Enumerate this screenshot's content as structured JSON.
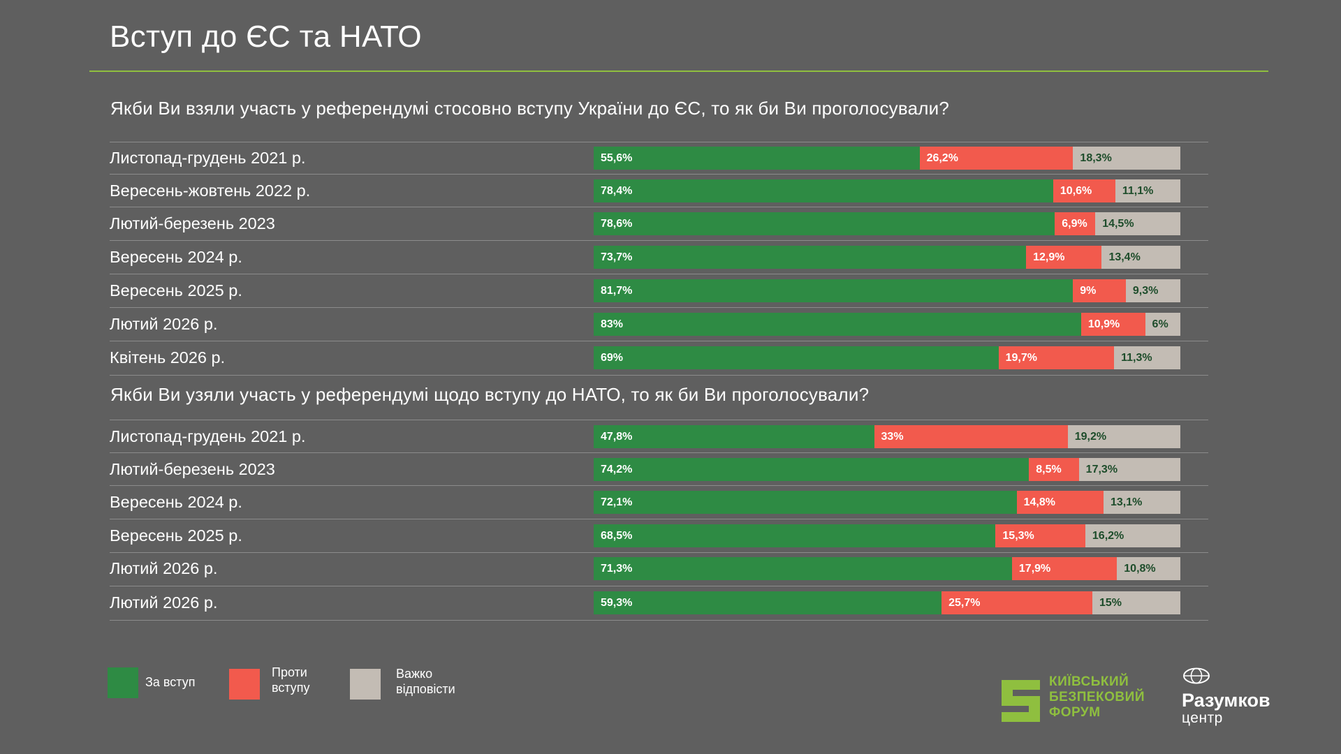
{
  "page": {
    "title": "Вступ до ЄС та НАТО"
  },
  "colors": {
    "for": "#2e8b44",
    "against": "#f25a4d",
    "hard": "#c3bcb4",
    "accent": "#8fbf3f"
  },
  "chart_data": [
    {
      "type": "bar",
      "orientation": "horizontal",
      "stacked": true,
      "title": "Якби Ви взяли участь у референдумі стосовно вступу України до ЄС, то як би Ви проголосували?",
      "categories": [
        "Листопад-грудень 2021 р.",
        "Вересень-жовтень 2022 р.",
        "Лютий-березень 2023",
        "Вересень 2024 р.",
        "Вересень 2025 р.",
        "Лютий 2026 р.",
        "Квітень 2026 р."
      ],
      "series": [
        {
          "name": "За вступ",
          "values": [
            55.6,
            78.4,
            78.6,
            73.7,
            81.7,
            83,
            69
          ],
          "labels": [
            "55,6%",
            "78,4%",
            "78,6%",
            "73,7%",
            "81,7%",
            "83%",
            "69%"
          ]
        },
        {
          "name": "Проти вступу",
          "values": [
            26.2,
            10.6,
            6.9,
            12.9,
            9,
            10.9,
            19.7
          ],
          "labels": [
            "26,2%",
            "10,6%",
            "6,9%",
            "12,9%",
            "9%",
            "10,9%",
            "19,7%"
          ]
        },
        {
          "name": "Важко відповісти",
          "values": [
            18.3,
            11.1,
            14.5,
            13.4,
            9.3,
            6,
            11.3
          ],
          "labels": [
            "18,3%",
            "11,1%",
            "14,5%",
            "13,4%",
            "9,3%",
            "6%",
            "11,3%"
          ]
        }
      ]
    },
    {
      "type": "bar",
      "orientation": "horizontal",
      "stacked": true,
      "title": "Якби Ви узяли участь у референдумі щодо вступу до НАТО, то як би Ви проголосували?",
      "categories": [
        "Листопад-грудень 2021 р.",
        "Лютий-березень 2023",
        "Вересень 2024 р.",
        "Вересень 2025 р.",
        "Лютий 2026 р.",
        "Лютий 2026 р."
      ],
      "series": [
        {
          "name": "За вступ",
          "values": [
            47.8,
            74.2,
            72.1,
            68.5,
            71.3,
            59.3
          ],
          "labels": [
            "47,8%",
            "74,2%",
            "72,1%",
            "68,5%",
            "71,3%",
            "59,3%"
          ]
        },
        {
          "name": "Проти вступу",
          "values": [
            33,
            8.5,
            14.8,
            15.3,
            17.9,
            25.7
          ],
          "labels": [
            "33%",
            "8,5%",
            "14,8%",
            "15,3%",
            "17,9%",
            "25,7%"
          ]
        },
        {
          "name": "Важко відповісти",
          "values": [
            19.2,
            17.3,
            13.1,
            16.2,
            10.8,
            15
          ],
          "labels": [
            "19,2%",
            "17,3%",
            "13,1%",
            "16,2%",
            "10,8%",
            "15%"
          ]
        }
      ]
    }
  ],
  "legend": {
    "for": "За вступ",
    "against_1": "Проти",
    "against_2": "вступу",
    "hard_1": "Важко",
    "hard_2": "відповісти"
  },
  "logos": {
    "kbf_1": "КИЇВСЬКИЙ",
    "kbf_2": "БЕЗПЕКОВИЙ",
    "kbf_3": "ФОРУМ",
    "razumkov_name": "Разумков",
    "razumkov_sub": "центр"
  }
}
